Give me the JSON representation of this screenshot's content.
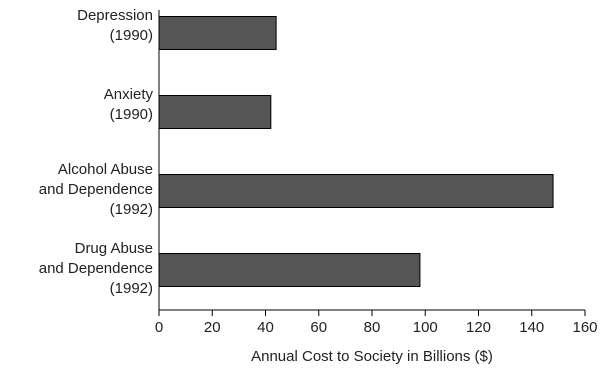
{
  "chart_data": {
    "type": "bar",
    "orientation": "horizontal",
    "categories": [
      "Depression\n(1990)",
      "Anxiety\n(1990)",
      "Alcohol Abuse\nand Dependence\n(1992)",
      "Drug Abuse\nand Dependence\n(1992)"
    ],
    "values": [
      44,
      42,
      148,
      98
    ],
    "color": "#555555",
    "xlabel": "Annual Cost to Society in Billions ($)",
    "xlim": [
      0,
      160
    ],
    "xticks": [
      0,
      20,
      40,
      60,
      80,
      100,
      120,
      140,
      160
    ],
    "grid": false
  }
}
